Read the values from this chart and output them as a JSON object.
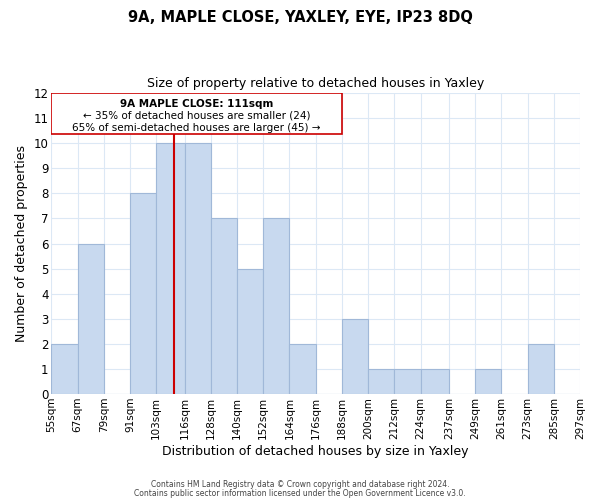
{
  "title1": "9A, MAPLE CLOSE, YAXLEY, EYE, IP23 8DQ",
  "title2": "Size of property relative to detached houses in Yaxley",
  "xlabel": "Distribution of detached houses by size in Yaxley",
  "ylabel": "Number of detached properties",
  "bins": [
    55,
    67,
    79,
    91,
    103,
    116,
    128,
    140,
    152,
    164,
    176,
    188,
    200,
    212,
    224,
    237,
    249,
    261,
    273,
    285,
    297
  ],
  "bin_labels": [
    "55sqm",
    "67sqm",
    "79sqm",
    "91sqm",
    "103sqm",
    "116sqm",
    "128sqm",
    "140sqm",
    "152sqm",
    "164sqm",
    "176sqm",
    "188sqm",
    "200sqm",
    "212sqm",
    "224sqm",
    "237sqm",
    "249sqm",
    "261sqm",
    "273sqm",
    "285sqm",
    "297sqm"
  ],
  "counts": [
    2,
    6,
    0,
    8,
    10,
    10,
    7,
    5,
    7,
    2,
    0,
    3,
    1,
    1,
    1,
    0,
    1,
    0,
    2,
    0
  ],
  "bar_color": "#c8d9ef",
  "bar_edge_color": "#a0b8d8",
  "grid_color": "#dce8f5",
  "vline_x": 111,
  "vline_color": "#cc0000",
  "annotation_line1": "9A MAPLE CLOSE: 111sqm",
  "annotation_line2": "← 35% of detached houses are smaller (24)",
  "annotation_line3": "65% of semi-detached houses are larger (45) →",
  "ylim": [
    0,
    12
  ],
  "yticks": [
    0,
    1,
    2,
    3,
    4,
    5,
    6,
    7,
    8,
    9,
    10,
    11,
    12
  ],
  "footer1": "Contains HM Land Registry data © Crown copyright and database right 2024.",
  "footer2": "Contains public sector information licensed under the Open Government Licence v3.0."
}
